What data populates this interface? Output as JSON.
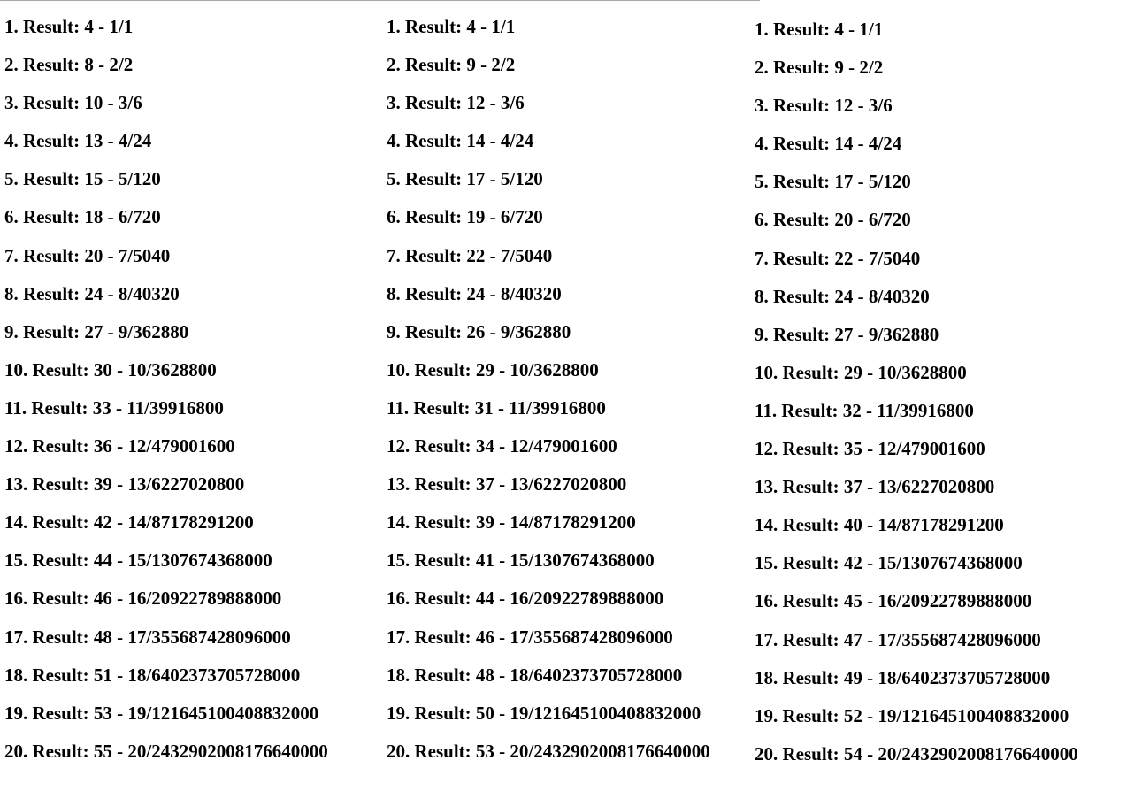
{
  "columns": [
    {
      "rows": [
        "1. Result: 4 - 1/1",
        "2. Result: 8 - 2/2",
        "3. Result: 10 - 3/6",
        "4. Result: 13 - 4/24",
        "5. Result: 15 - 5/120",
        "6. Result: 18 - 6/720",
        "7. Result: 20 - 7/5040",
        "8. Result: 24 - 8/40320",
        "9. Result: 27 - 9/362880",
        "10. Result: 30 - 10/3628800",
        "11. Result: 33 - 11/39916800",
        "12. Result: 36 - 12/479001600",
        "13. Result: 39 - 13/6227020800",
        "14. Result: 42 - 14/87178291200",
        "15. Result: 44 - 15/1307674368000",
        "16. Result: 46 - 16/20922789888000",
        "17. Result: 48 - 17/355687428096000",
        "18. Result: 51 - 18/6402373705728000",
        "19. Result: 53 - 19/121645100408832000",
        "20. Result: 55 - 20/2432902008176640000"
      ]
    },
    {
      "rows": [
        "1. Result: 4 - 1/1",
        "2. Result: 9 - 2/2",
        "3. Result: 12 - 3/6",
        "4. Result: 14 - 4/24",
        "5. Result: 17 - 5/120",
        "6. Result: 19 - 6/720",
        "7. Result: 22 - 7/5040",
        "8. Result: 24 - 8/40320",
        "9. Result: 26 - 9/362880",
        "10. Result: 29 - 10/3628800",
        "11. Result: 31 - 11/39916800",
        "12. Result: 34 - 12/479001600",
        "13. Result: 37 - 13/6227020800",
        "14. Result: 39 - 14/87178291200",
        "15. Result: 41 - 15/1307674368000",
        "16. Result: 44 - 16/20922789888000",
        "17. Result: 46 - 17/355687428096000",
        "18. Result: 48 - 18/6402373705728000",
        "19. Result: 50 - 19/121645100408832000",
        "20. Result: 53 - 20/2432902008176640000"
      ]
    },
    {
      "rows": [
        "1. Result: 4 - 1/1",
        "2. Result: 9 - 2/2",
        "3. Result: 12 - 3/6",
        "4. Result: 14 - 4/24",
        "5. Result: 17 - 5/120",
        "6. Result: 20 - 6/720",
        "7. Result: 22 - 7/5040",
        "8. Result: 24 - 8/40320",
        "9. Result: 27 - 9/362880",
        "10. Result: 29 - 10/3628800",
        "11. Result: 32 - 11/39916800",
        "12. Result: 35 - 12/479001600",
        "13. Result: 37 - 13/6227020800",
        "14. Result: 40 - 14/87178291200",
        "15. Result: 42 - 15/1307674368000",
        "16. Result: 45 - 16/20922789888000",
        "17. Result: 47 - 17/355687428096000",
        "18. Result: 49 - 18/6402373705728000",
        "19. Result: 52 - 19/121645100408832000",
        "20. Result: 54 - 20/2432902008176640000"
      ]
    }
  ]
}
